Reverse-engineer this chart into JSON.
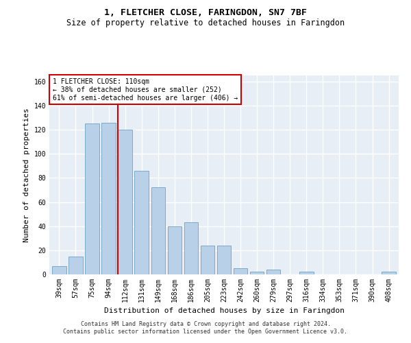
{
  "title": "1, FLETCHER CLOSE, FARINGDON, SN7 7BF",
  "subtitle": "Size of property relative to detached houses in Faringdon",
  "xlabel": "Distribution of detached houses by size in Faringdon",
  "ylabel": "Number of detached properties",
  "categories": [
    "39sqm",
    "57sqm",
    "75sqm",
    "94sqm",
    "112sqm",
    "131sqm",
    "149sqm",
    "168sqm",
    "186sqm",
    "205sqm",
    "223sqm",
    "242sqm",
    "260sqm",
    "279sqm",
    "297sqm",
    "316sqm",
    "334sqm",
    "353sqm",
    "371sqm",
    "390sqm",
    "408sqm"
  ],
  "values": [
    7,
    15,
    125,
    126,
    120,
    86,
    72,
    40,
    43,
    24,
    24,
    5,
    2,
    4,
    0,
    2,
    0,
    0,
    0,
    0,
    2
  ],
  "bar_color": "#b8d0e8",
  "bar_edge_color": "#7aaac8",
  "vline_color": "#cc0000",
  "annotation_text": "1 FLETCHER CLOSE: 110sqm\n← 38% of detached houses are smaller (252)\n61% of semi-detached houses are larger (406) →",
  "annotation_box_color": "#ffffff",
  "annotation_box_edge": "#cc0000",
  "ylim": [
    0,
    165
  ],
  "yticks": [
    0,
    20,
    40,
    60,
    80,
    100,
    120,
    140,
    160
  ],
  "bg_color": "#e8eef5",
  "grid_color": "#ffffff",
  "footer": "Contains HM Land Registry data © Crown copyright and database right 2024.\nContains public sector information licensed under the Open Government Licence v3.0.",
  "title_fontsize": 9.5,
  "subtitle_fontsize": 8.5,
  "ylabel_fontsize": 8,
  "xlabel_fontsize": 8,
  "tick_fontsize": 7,
  "annotation_fontsize": 7,
  "footer_fontsize": 6
}
